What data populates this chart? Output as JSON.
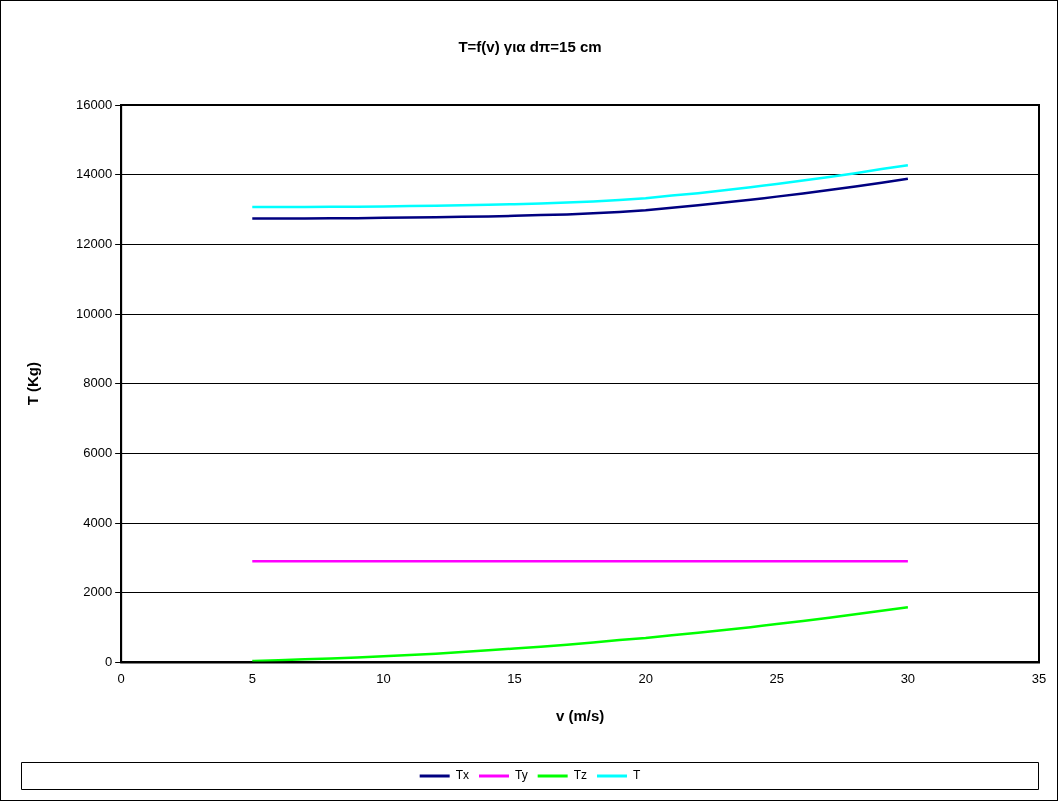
{
  "chart_data": {
    "type": "line",
    "title": "T=f(v) για dπ=15 cm",
    "xlabel": "v (m/s)",
    "ylabel": "T (Kg)",
    "x": [
      5,
      6,
      7,
      8,
      9,
      10,
      11,
      12,
      13,
      14,
      15,
      16,
      17,
      18,
      19,
      20,
      21,
      22,
      23,
      24,
      25,
      26,
      27,
      28,
      29,
      30
    ],
    "series": [
      {
        "name": "Tx",
        "color": "#000080",
        "values": [
          12740,
          12740,
          12740,
          12750,
          12750,
          12760,
          12770,
          12780,
          12790,
          12800,
          12820,
          12840,
          12860,
          12890,
          12930,
          12980,
          13050,
          13120,
          13200,
          13280,
          13370,
          13460,
          13560,
          13660,
          13770,
          13880
        ]
      },
      {
        "name": "Ty",
        "color": "#ff00ff",
        "values": [
          2900,
          2900,
          2900,
          2900,
          2900,
          2900,
          2900,
          2900,
          2900,
          2900,
          2900,
          2900,
          2900,
          2900,
          2900,
          2900,
          2900,
          2900,
          2900,
          2900,
          2900,
          2900,
          2900,
          2900,
          2900,
          2900
        ]
      },
      {
        "name": "Tz",
        "color": "#00ff00",
        "values": [
          40,
          60,
          90,
          110,
          140,
          180,
          210,
          250,
          300,
          350,
          400,
          450,
          510,
          570,
          640,
          700,
          780,
          850,
          930,
          1010,
          1100,
          1190,
          1280,
          1380,
          1480,
          1580
        ]
      },
      {
        "name": "T",
        "color": "#00ffff",
        "values": [
          13070,
          13070,
          13070,
          13080,
          13080,
          13090,
          13100,
          13110,
          13120,
          13140,
          13150,
          13170,
          13200,
          13230,
          13270,
          13320,
          13400,
          13470,
          13550,
          13640,
          13730,
          13830,
          13930,
          14040,
          14160,
          14270
        ]
      }
    ],
    "xlim": [
      0,
      35
    ],
    "xticks": [
      0,
      5,
      10,
      15,
      20,
      25,
      30,
      35
    ],
    "ylim": [
      0,
      16000
    ],
    "yticks": [
      0,
      2000,
      4000,
      6000,
      8000,
      10000,
      12000,
      14000,
      16000
    ],
    "grid": "y",
    "legend": "bottom",
    "marker": "none",
    "line_style": "solid"
  }
}
